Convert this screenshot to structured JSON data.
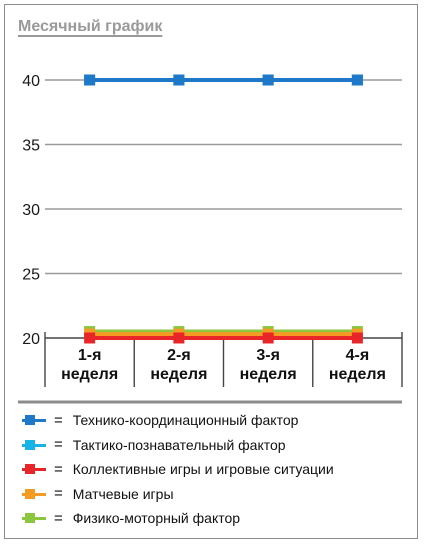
{
  "chart_data": {
    "type": "line",
    "title": "Месячный график",
    "categories": [
      "1-я неделя",
      "2-я неделя",
      "3-я неделя",
      "4-я неделя"
    ],
    "category_lines": [
      [
        "1-я",
        "неделя"
      ],
      [
        "2-я",
        "неделя"
      ],
      [
        "3-я",
        "неделя"
      ],
      [
        "4-я",
        "неделя"
      ]
    ],
    "ylim": [
      20,
      40
    ],
    "yticks": [
      20,
      25,
      30,
      35,
      40
    ],
    "grid": true,
    "legend_position": "bottom",
    "series": [
      {
        "name": "Технико-координационный фактор",
        "color": "#1f78c8",
        "values": [
          40,
          40,
          40,
          40
        ]
      },
      {
        "name": "Тактико-познавательный фактор",
        "color": "#17b3e6",
        "values": [
          40,
          40,
          40,
          40
        ]
      },
      {
        "name": "Коллективные игры и игровые ситуации",
        "color": "#e8262a",
        "values": [
          20,
          20,
          20,
          20
        ]
      },
      {
        "name": "Матчевые игры",
        "color": "#f59a23",
        "values": [
          20.3,
          20.3,
          20.3,
          20.3
        ]
      },
      {
        "name": "Физико-моторный фактор",
        "color": "#8cc63f",
        "values": [
          20.5,
          20.5,
          20.5,
          20.5
        ]
      }
    ],
    "legend_equals": "="
  }
}
